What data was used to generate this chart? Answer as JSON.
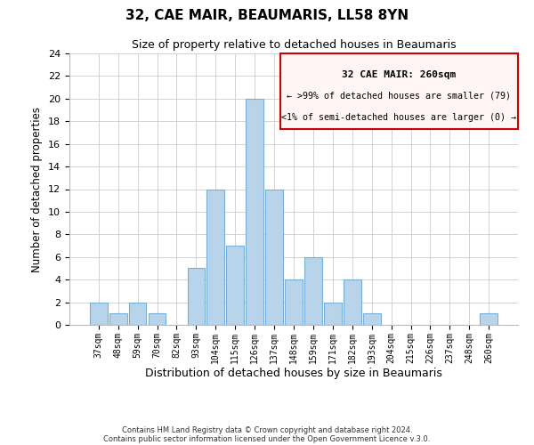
{
  "title": "32, CAE MAIR, BEAUMARIS, LL58 8YN",
  "subtitle": "Size of property relative to detached houses in Beaumaris",
  "xlabel": "Distribution of detached houses by size in Beaumaris",
  "ylabel": "Number of detached properties",
  "bar_color": "#b8d4ea",
  "bar_edge_color": "#7aafd4",
  "categories": [
    "37sqm",
    "48sqm",
    "59sqm",
    "70sqm",
    "82sqm",
    "93sqm",
    "104sqm",
    "115sqm",
    "126sqm",
    "137sqm",
    "148sqm",
    "159sqm",
    "171sqm",
    "182sqm",
    "193sqm",
    "204sqm",
    "215sqm",
    "226sqm",
    "237sqm",
    "248sqm",
    "260sqm"
  ],
  "values": [
    2,
    1,
    2,
    1,
    0,
    5,
    12,
    7,
    20,
    12,
    4,
    6,
    2,
    4,
    1,
    0,
    0,
    0,
    0,
    0,
    1
  ],
  "ylim": [
    0,
    24
  ],
  "yticks": [
    0,
    2,
    4,
    6,
    8,
    10,
    12,
    14,
    16,
    18,
    20,
    22,
    24
  ],
  "annotation_title": "32 CAE MAIR: 260sqm",
  "annotation_line1": "← >99% of detached houses are smaller (79)",
  "annotation_line2": "<1% of semi-detached houses are larger (0) →",
  "annotation_box_color": "#fff5f5",
  "annotation_border_color": "#cc0000",
  "footer1": "Contains HM Land Registry data © Crown copyright and database right 2024.",
  "footer2": "Contains public sector information licensed under the Open Government Licence v.3.0.",
  "grid_color": "#cccccc",
  "background_color": "#ffffff"
}
